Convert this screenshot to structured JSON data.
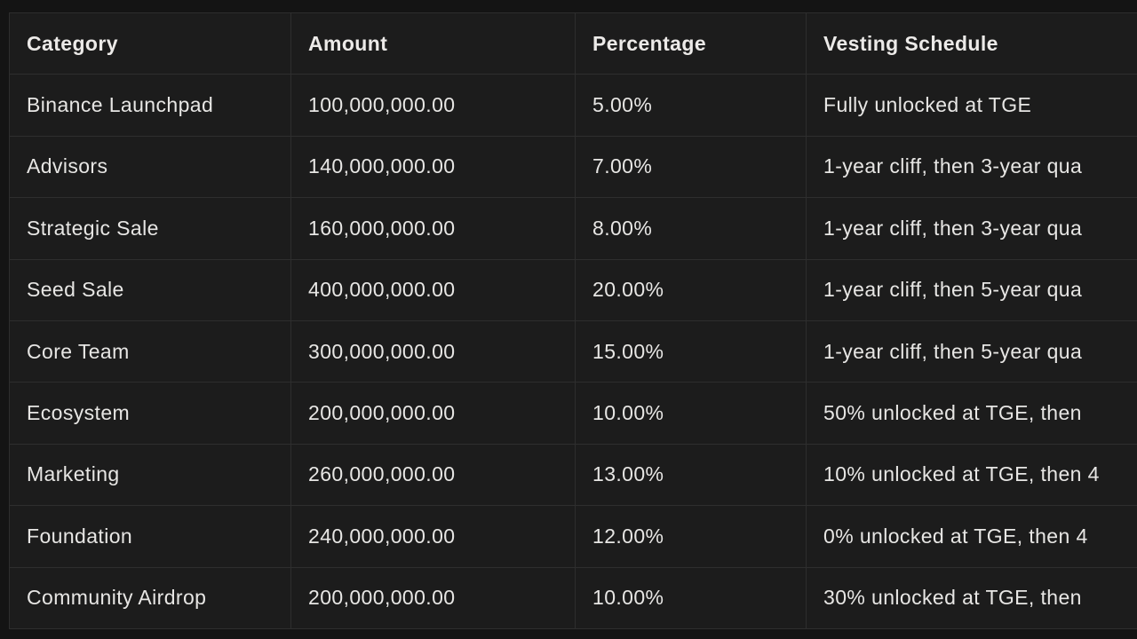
{
  "chart_data": {
    "type": "table",
    "columns": [
      "Category",
      "Amount",
      "Percentage",
      "Vesting Schedule"
    ],
    "rows": [
      [
        "Binance Launchpad",
        "100,000,000.00",
        "5.00%",
        "Fully unlocked at TGE"
      ],
      [
        "Advisors",
        "140,000,000.00",
        "7.00%",
        "1-year cliff, then 3-year qua"
      ],
      [
        "Strategic Sale",
        "160,000,000.00",
        "8.00%",
        "1-year cliff, then 3-year qua"
      ],
      [
        "Seed Sale",
        "400,000,000.00",
        "20.00%",
        "1-year cliff, then 5-year qua"
      ],
      [
        "Core Team",
        "300,000,000.00",
        "15.00%",
        "1-year cliff, then 5-year qua"
      ],
      [
        "Ecosystem",
        "200,000,000.00",
        "10.00%",
        "50% unlocked at TGE, then"
      ],
      [
        "Marketing",
        "260,000,000.00",
        "13.00%",
        "10% unlocked at TGE, then 4"
      ],
      [
        "Foundation",
        "240,000,000.00",
        "12.00%",
        "0% unlocked at TGE, then 4"
      ],
      [
        "Community Airdrop",
        "200,000,000.00",
        "10.00%",
        "30% unlocked at TGE, then"
      ]
    ],
    "layout": {
      "grid": "on",
      "header_row": true,
      "right_edge_clipped": true
    }
  },
  "colors": {
    "page_background": "#141414",
    "cell_background": "#1c1c1c",
    "grid_border": "#2e2e2e",
    "cell_text": "#e7e6e4",
    "header_text": "#eceae8"
  }
}
